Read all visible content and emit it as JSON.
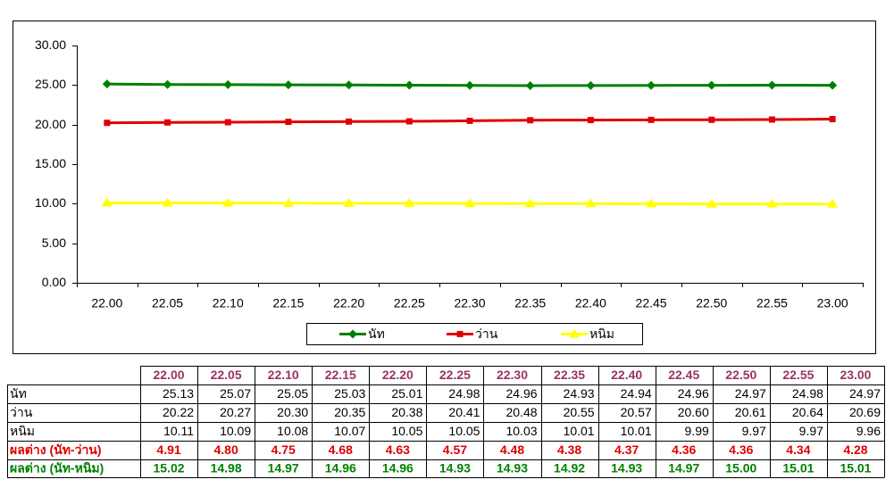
{
  "chart_data": {
    "type": "line",
    "categories": [
      "22.00",
      "22.05",
      "22.10",
      "22.15",
      "22.20",
      "22.25",
      "22.30",
      "22.35",
      "22.40",
      "22.45",
      "22.50",
      "22.55",
      "23.00"
    ],
    "series": [
      {
        "name": "นัท",
        "color": "#008000",
        "marker": "diamond",
        "values": [
          25.13,
          25.07,
          25.05,
          25.03,
          25.01,
          24.98,
          24.96,
          24.93,
          24.94,
          24.96,
          24.97,
          24.98,
          24.97
        ],
        "value_labels": [
          "25.13",
          "25.07",
          "25.05",
          "25.03",
          "25.01",
          "24.98",
          "24.96",
          "24.93",
          "24.94",
          "24.96",
          "24.97",
          "24.98",
          "24.97"
        ]
      },
      {
        "name": "ว่าน",
        "color": "#e00000",
        "marker": "square",
        "values": [
          20.22,
          20.27,
          20.3,
          20.35,
          20.38,
          20.41,
          20.48,
          20.55,
          20.57,
          20.6,
          20.61,
          20.64,
          20.69
        ],
        "value_labels": [
          "20.22",
          "20.27",
          "20.30",
          "20.35",
          "20.38",
          "20.41",
          "20.48",
          "20.55",
          "20.57",
          "20.60",
          "20.61",
          "20.64",
          "20.69"
        ]
      },
      {
        "name": "หนิม",
        "color": "#ffff00",
        "marker": "triangle",
        "values": [
          10.11,
          10.09,
          10.08,
          10.07,
          10.05,
          10.05,
          10.03,
          10.01,
          10.01,
          9.99,
          9.97,
          9.97,
          9.96
        ],
        "value_labels": [
          "10.11",
          "10.09",
          "10.08",
          "10.07",
          "10.05",
          "10.05",
          "10.03",
          "10.01",
          "10.01",
          "9.99",
          "9.97",
          "9.97",
          "9.96"
        ]
      }
    ],
    "ylim": [
      0,
      30
    ],
    "yticks": [
      {
        "value": 0,
        "label": "0.00"
      },
      {
        "value": 5,
        "label": "5.00"
      },
      {
        "value": 10,
        "label": "10.00"
      },
      {
        "value": 15,
        "label": "15.00"
      },
      {
        "value": 20,
        "label": "20.00"
      },
      {
        "value": 25,
        "label": "25.00"
      },
      {
        "value": 30,
        "label": "30.00"
      }
    ],
    "grid": false,
    "legend": "bottom"
  },
  "table": {
    "rows": [
      {
        "label": "ผลต่าง (นัท-ว่าน)",
        "color": "#e00000",
        "cells": [
          "4.91",
          "4.80",
          "4.75",
          "4.68",
          "4.63",
          "4.57",
          "4.48",
          "4.38",
          "4.37",
          "4.36",
          "4.36",
          "4.34",
          "4.28"
        ]
      },
      {
        "label": "ผลต่าง (นัท-หนิม)",
        "color": "#008000",
        "cells": [
          "15.02",
          "14.98",
          "14.97",
          "14.96",
          "14.96",
          "14.93",
          "14.93",
          "14.92",
          "14.93",
          "14.97",
          "15.00",
          "15.01",
          "15.01"
        ]
      }
    ]
  }
}
